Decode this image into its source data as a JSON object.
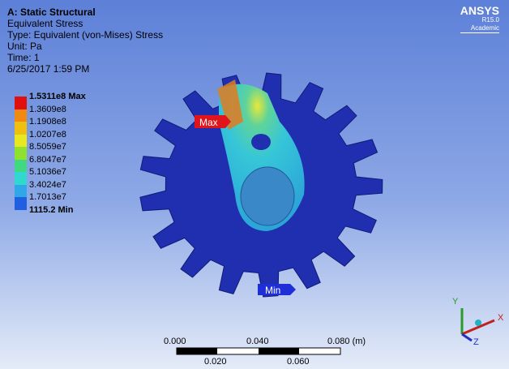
{
  "header": {
    "title": "A: Static Structural",
    "lines": [
      "Equivalent Stress",
      "Type: Equivalent (von-Mises) Stress",
      "Unit: Pa",
      "Time: 1",
      "6/25/2017 1:59 PM"
    ]
  },
  "legend": [
    "1.5311e8 Max",
    "1.3609e8",
    "1.1908e8",
    "1.0207e8",
    "8.5059e7",
    "6.8047e7",
    "5.1036e7",
    "3.4024e7",
    "1.7013e7",
    "1115.2 Min"
  ],
  "logo": {
    "name": "ANSYS",
    "version": "R15.0",
    "license": "Academic"
  },
  "probes": {
    "max": "Max",
    "min": "Min"
  },
  "scale": {
    "top": [
      "0.000",
      "0.040",
      "0.080 (m)"
    ],
    "bottom": [
      "0.020",
      "0.060"
    ]
  },
  "triad": {
    "x": "X",
    "y": "Y",
    "z": "Z"
  }
}
